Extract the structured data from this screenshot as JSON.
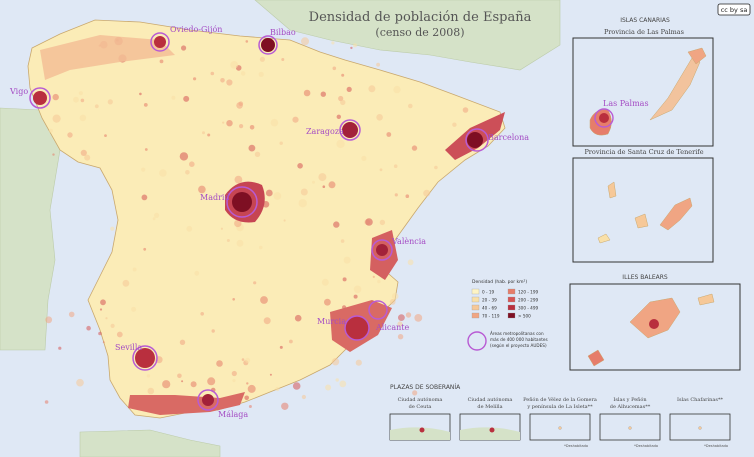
{
  "title_line1": "Densidad de población de España",
  "title_line2": "(censo de 2008)",
  "license_badge": "cc by sa",
  "cities": [
    {
      "id": "oviedo",
      "label": "Oviedo-Gijón"
    },
    {
      "id": "bilbao",
      "label": "Bilbao"
    },
    {
      "id": "vigo",
      "label": "Vigo"
    },
    {
      "id": "zaragoza",
      "label": "Zaragoza"
    },
    {
      "id": "barcelona",
      "label": "Barcelona"
    },
    {
      "id": "madrid",
      "label": "Madrid"
    },
    {
      "id": "valencia",
      "label": "València"
    },
    {
      "id": "murcia",
      "label": "Murcia"
    },
    {
      "id": "alicante",
      "label": "Alicante"
    },
    {
      "id": "sevilla",
      "label": "Sevilla"
    },
    {
      "id": "malaga",
      "label": "Málaga"
    },
    {
      "id": "laspalmas",
      "label": "Las Palmas"
    }
  ],
  "canarias": {
    "title": "ISLAS CANARIAS",
    "province1": "Provincia de Las Palmas",
    "province2": "Provincia de Santa Cruz de Tenerife"
  },
  "baleares": {
    "title": "ILLES BALEARS"
  },
  "legend": {
    "title": "Densidad (hab. por km²)",
    "classes": [
      {
        "label": "0 - 19",
        "color": "#fdf4c4"
      },
      {
        "label": "20 - 39",
        "color": "#f9e0a8"
      },
      {
        "label": "40 - 69",
        "color": "#f6c898"
      },
      {
        "label": "70 - 119",
        "color": "#f0a583"
      },
      {
        "label": "120 - 199",
        "color": "#e67d6a"
      },
      {
        "label": "200 - 299",
        "color": "#d65555"
      },
      {
        "label": "300 - 499",
        "color": "#b92f3e"
      },
      {
        "label": "> 500",
        "color": "#7e0f23"
      }
    ],
    "circle_text": [
      "Áreas metropolitanas con",
      "más de 400 000 habitantes",
      "(según el proyecto AUDES)"
    ],
    "circle_color": "#b85bd4"
  },
  "plazas": {
    "title": "PLAZAS DE SOBERANÍA",
    "items": [
      {
        "label": [
          "Ciudad autónoma",
          "de Ceuta"
        ],
        "note": ""
      },
      {
        "label": [
          "Ciudad autónoma",
          "de Melilla"
        ],
        "note": ""
      },
      {
        "label": [
          "Peñón de Vélez de la Gomera",
          "y península de La Isleta**"
        ],
        "note": "*Deshabitado"
      },
      {
        "label": [
          "Islas y Peñón",
          "de Alhucemas**"
        ],
        "note": "*Deshabitado"
      },
      {
        "label": [
          "Islas Chafarinas**"
        ],
        "note": "*Deshabitado"
      }
    ]
  },
  "colors": {
    "sea": "#dfe8f5",
    "land_other": "#d5e2c8",
    "base": "#fbecb7",
    "border": "#e3cf9a"
  }
}
